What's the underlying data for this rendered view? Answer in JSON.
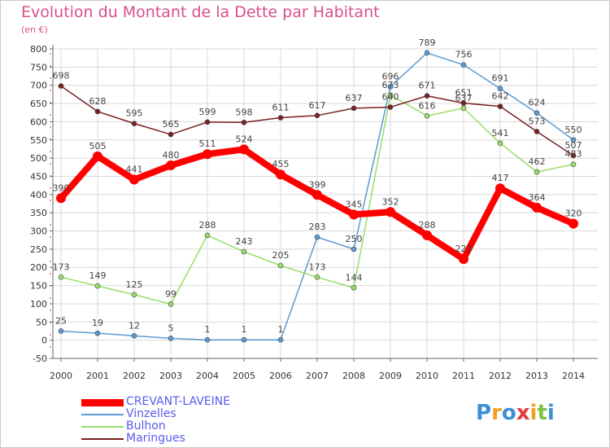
{
  "header": {
    "title": "Evolution du Montant de la Dette par Habitant",
    "subtitle": "(en €)"
  },
  "logo": {
    "text": "Proxiti",
    "icon": "proxiti-logo"
  },
  "colors": {
    "grid": "#d8d8d8",
    "axis": "#666666",
    "tick_text": "#333333",
    "value_text": "#444444",
    "title": "#d94f8a",
    "legend_text": "#5a5af0"
  },
  "chart_data": {
    "type": "line",
    "title": "Evolution du Montant de la Dette par Habitant",
    "subtitle": "(en €)",
    "xlabel": "",
    "ylabel": "",
    "x": [
      "2000",
      "2001",
      "2002",
      "2003",
      "2004",
      "2005",
      "2006",
      "2007",
      "2008",
      "2009",
      "2010",
      "2011",
      "2012",
      "2013",
      "2014"
    ],
    "ylim": [
      -50,
      800
    ],
    "yticks": [
      -50,
      0,
      50,
      100,
      150,
      200,
      250,
      300,
      350,
      400,
      450,
      500,
      550,
      600,
      650,
      700,
      750,
      800
    ],
    "grid": true,
    "legend_position": "bottom-left",
    "series": [
      {
        "name": "CREVANT-LAVEINE",
        "color": "#ff0000",
        "highlight": true,
        "values": [
          390,
          505,
          441,
          480,
          511,
          524,
          455,
          399,
          345,
          352,
          288,
          223,
          417,
          364,
          320
        ]
      },
      {
        "name": "Vinzelles",
        "color": "#5b9bd5",
        "highlight": false,
        "values": [
          25,
          19,
          12,
          5,
          1,
          1,
          1,
          283,
          250,
          696,
          789,
          756,
          691,
          624,
          550
        ]
      },
      {
        "name": "Bulhon",
        "color": "#99dd66",
        "highlight": false,
        "values": [
          173,
          149,
          125,
          99,
          288,
          243,
          205,
          173,
          144,
          673,
          616,
          637,
          541,
          462,
          483
        ]
      },
      {
        "name": "Maringues",
        "color": "#7a2020",
        "highlight": false,
        "values": [
          698,
          628,
          595,
          565,
          599,
          598,
          611,
          617,
          637,
          640,
          671,
          651,
          642,
          573,
          507
        ]
      }
    ]
  }
}
